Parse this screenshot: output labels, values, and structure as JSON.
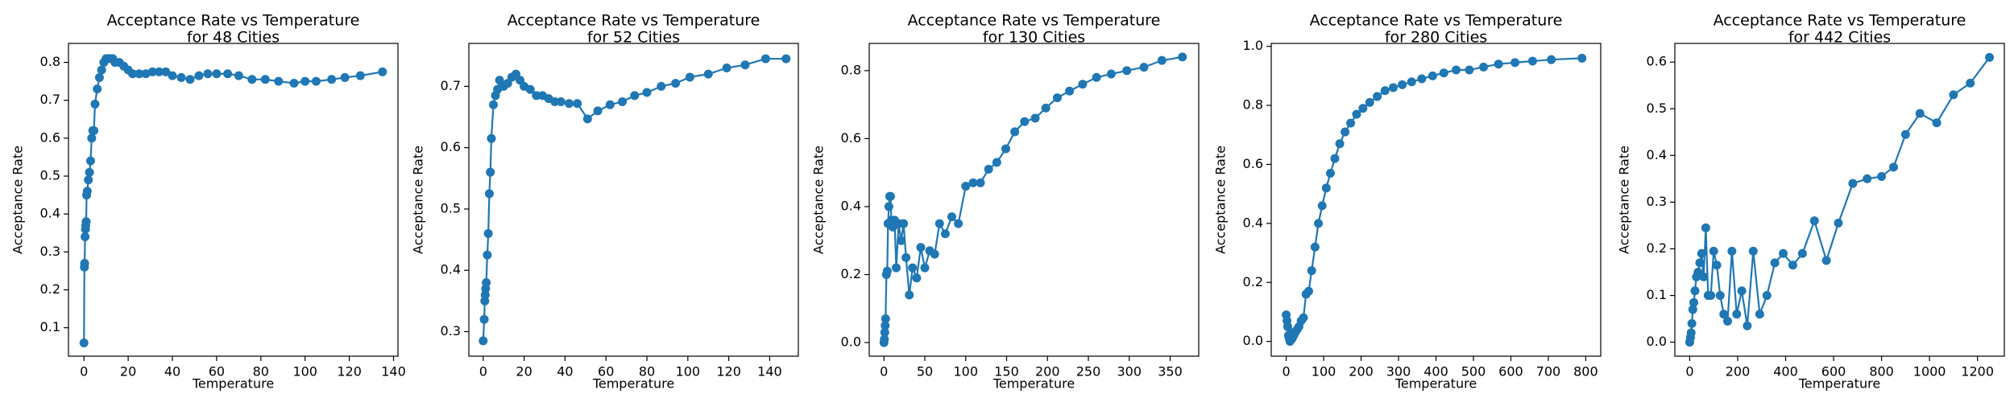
{
  "chart_data": [
    {
      "type": "line",
      "title": [
        "Acceptance Rate vs Temperature",
        "for 48 Cities"
      ],
      "xlabel": "Temperature",
      "ylabel": "Acceptance Rate",
      "color": "#1f77b4",
      "x": [
        0,
        0.2,
        0.3,
        0.5,
        0.7,
        0.8,
        1,
        1.2,
        1.5,
        2,
        2.5,
        3,
        3.5,
        4,
        4.5,
        5,
        6,
        7,
        8,
        9,
        10,
        11,
        12,
        13,
        14,
        16,
        18,
        20,
        22,
        25,
        28,
        31,
        34,
        37,
        40,
        44,
        48,
        52,
        56,
        60,
        65,
        70,
        76,
        82,
        88,
        95,
        100,
        105,
        112,
        118,
        125,
        135
      ],
      "values": [
        0.06,
        0.26,
        0.27,
        0.34,
        0.36,
        0.37,
        0.38,
        0.45,
        0.46,
        0.49,
        0.51,
        0.54,
        0.6,
        0.62,
        0.62,
        0.69,
        0.73,
        0.76,
        0.78,
        0.8,
        0.81,
        0.81,
        0.81,
        0.81,
        0.8,
        0.8,
        0.79,
        0.78,
        0.77,
        0.77,
        0.77,
        0.775,
        0.775,
        0.775,
        0.765,
        0.76,
        0.755,
        0.765,
        0.77,
        0.77,
        0.77,
        0.765,
        0.755,
        0.755,
        0.75,
        0.745,
        0.75,
        0.75,
        0.755,
        0.76,
        0.765,
        0.775
      ],
      "xlim": [
        -7,
        142
      ],
      "ylim": [
        0.025,
        0.85
      ],
      "xticks": [
        0,
        20,
        40,
        60,
        80,
        100,
        120,
        140
      ],
      "yticks": [
        0.1,
        0.2,
        0.3,
        0.4,
        0.5,
        0.6,
        0.7,
        0.8
      ]
    },
    {
      "type": "line",
      "title": [
        "Acceptance Rate vs Temperature",
        "for 52 Cities"
      ],
      "xlabel": "Temperature",
      "ylabel": "Acceptance Rate",
      "color": "#1f77b4",
      "x": [
        0,
        0.5,
        0.8,
        1,
        1.2,
        1.5,
        2,
        2.5,
        3,
        3.5,
        4,
        5,
        6,
        7,
        8,
        10,
        12,
        14,
        16,
        18,
        20,
        23,
        26,
        29,
        32,
        35,
        38,
        42,
        46,
        51,
        56,
        62,
        68,
        74,
        80,
        87,
        94,
        101,
        110,
        119,
        128,
        138,
        148
      ],
      "values": [
        0.285,
        0.32,
        0.35,
        0.36,
        0.37,
        0.38,
        0.425,
        0.46,
        0.525,
        0.56,
        0.615,
        0.67,
        0.685,
        0.695,
        0.71,
        0.7,
        0.705,
        0.715,
        0.72,
        0.71,
        0.7,
        0.695,
        0.685,
        0.685,
        0.68,
        0.675,
        0.675,
        0.672,
        0.672,
        0.647,
        0.66,
        0.67,
        0.675,
        0.685,
        0.69,
        0.7,
        0.705,
        0.715,
        0.72,
        0.73,
        0.735,
        0.745,
        0.745
      ],
      "xlim": [
        -7,
        154
      ],
      "ylim": [
        0.26,
        0.77
      ],
      "xticks": [
        0,
        20,
        40,
        60,
        80,
        100,
        120,
        140
      ],
      "yticks": [
        0.3,
        0.4,
        0.5,
        0.6,
        0.7
      ]
    },
    {
      "type": "line",
      "title": [
        "Acceptance Rate vs Temperature",
        "for 130 Cities"
      ],
      "xlabel": "Temperature",
      "ylabel": "Acceptance Rate",
      "color": "#1f77b4",
      "x": [
        0,
        0.5,
        1,
        1.5,
        2,
        3,
        4,
        5,
        6,
        7,
        8,
        9,
        11,
        13,
        15,
        18,
        21,
        24,
        27,
        31,
        35,
        40,
        45,
        50,
        56,
        62,
        68,
        75,
        83,
        91,
        100,
        109,
        118,
        128,
        138,
        149,
        160,
        172,
        185,
        198,
        212,
        227,
        243,
        260,
        278,
        297,
        318,
        340,
        365
      ],
      "values": [
        0.0,
        0.01,
        0.03,
        0.05,
        0.07,
        0.2,
        0.21,
        0.35,
        0.4,
        0.43,
        0.43,
        0.36,
        0.34,
        0.36,
        0.22,
        0.35,
        0.3,
        0.35,
        0.25,
        0.14,
        0.22,
        0.19,
        0.28,
        0.22,
        0.27,
        0.26,
        0.35,
        0.32,
        0.37,
        0.35,
        0.46,
        0.47,
        0.47,
        0.51,
        0.53,
        0.57,
        0.62,
        0.65,
        0.66,
        0.69,
        0.72,
        0.74,
        0.76,
        0.78,
        0.79,
        0.8,
        0.81,
        0.83,
        0.84
      ],
      "xlim": [
        -18,
        385
      ],
      "ylim": [
        -0.04,
        0.88
      ],
      "xticks": [
        0,
        50,
        100,
        150,
        200,
        250,
        300,
        350
      ],
      "yticks": [
        {
          "value": 0,
          "label": "0.0"
        },
        0.2,
        0.4,
        0.6,
        0.8
      ]
    },
    {
      "type": "line",
      "title": [
        "Acceptance Rate vs Temperature",
        "for 280 Cities"
      ],
      "xlabel": "Temperature",
      "ylabel": "Acceptance Rate",
      "color": "#1f77b4",
      "x": [
        0,
        2,
        4,
        6,
        8,
        10,
        13,
        16,
        20,
        24,
        29,
        34,
        40,
        46,
        53,
        60,
        68,
        77,
        86,
        96,
        107,
        118,
        130,
        143,
        157,
        172,
        188,
        205,
        223,
        243,
        264,
        286,
        310,
        335,
        362,
        391,
        421,
        454,
        489,
        527,
        567,
        611,
        658,
        708,
        790
      ],
      "values": [
        0.09,
        0.07,
        0.05,
        0.02,
        0.01,
        0.0,
        0.03,
        0.01,
        0.02,
        0.03,
        0.04,
        0.05,
        0.07,
        0.08,
        0.16,
        0.17,
        0.24,
        0.32,
        0.4,
        0.46,
        0.52,
        0.57,
        0.62,
        0.67,
        0.71,
        0.74,
        0.77,
        0.79,
        0.81,
        0.83,
        0.85,
        0.86,
        0.87,
        0.88,
        0.89,
        0.9,
        0.91,
        0.92,
        0.92,
        0.93,
        0.94,
        0.945,
        0.95,
        0.955,
        0.96
      ],
      "xlim": [
        -40,
        840
      ],
      "ylim": [
        -0.05,
        1.01
      ],
      "xticks": [
        0,
        100,
        200,
        300,
        400,
        500,
        600,
        700,
        800
      ],
      "yticks": [
        {
          "value": 0,
          "label": "0.0"
        },
        0.2,
        0.4,
        0.6,
        0.8,
        {
          "value": 1,
          "label": "1.0"
        }
      ]
    },
    {
      "type": "line",
      "title": [
        "Acceptance Rate vs Temperature",
        "for 442 Cities"
      ],
      "xlabel": "Temperature",
      "ylabel": "Acceptance Rate",
      "color": "#1f77b4",
      "x": [
        0,
        3,
        6,
        9,
        13,
        17,
        22,
        28,
        35,
        42,
        50,
        58,
        67,
        77,
        88,
        100,
        113,
        127,
        142,
        158,
        176,
        196,
        217,
        240,
        265,
        292,
        322,
        355,
        390,
        430,
        470,
        520,
        570,
        620,
        680,
        740,
        800,
        850,
        900,
        960,
        1030,
        1100,
        1170,
        1250
      ],
      "values": [
        0.0,
        0.01,
        0.02,
        0.04,
        0.07,
        0.085,
        0.11,
        0.14,
        0.15,
        0.17,
        0.19,
        0.14,
        0.245,
        0.1,
        0.1,
        0.195,
        0.165,
        0.1,
        0.06,
        0.045,
        0.195,
        0.06,
        0.11,
        0.035,
        0.195,
        0.06,
        0.1,
        0.17,
        0.19,
        0.165,
        0.19,
        0.26,
        0.175,
        0.255,
        0.34,
        0.35,
        0.355,
        0.375,
        0.445,
        0.49,
        0.47,
        0.53,
        0.555,
        0.61
      ],
      "xlim": [
        -62,
        1312
      ],
      "ylim": [
        -0.03,
        0.64
      ],
      "xticks": [
        0,
        200,
        400,
        600,
        800,
        1000,
        1200
      ],
      "yticks": [
        {
          "value": 0,
          "label": "0.0"
        },
        0.1,
        0.2,
        0.3,
        0.4,
        0.5,
        0.6
      ]
    }
  ]
}
